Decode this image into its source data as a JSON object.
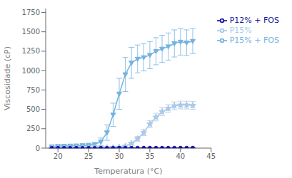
{
  "chart_data": {
    "type": "line",
    "xlabel": "Temperatura (°C)",
    "ylabel": "Viscosidade (cP)",
    "xlim": [
      18,
      45
    ],
    "ylim": [
      0,
      1800
    ],
    "xticks": [
      20,
      25,
      30,
      35,
      40,
      45
    ],
    "yticks": [
      0,
      250,
      500,
      750,
      1000,
      1250,
      1500,
      1750
    ],
    "grid": false,
    "legend": "right",
    "x": [
      19,
      20,
      21,
      22,
      23,
      24,
      25,
      26,
      27,
      28,
      29,
      30,
      31,
      32,
      33,
      34,
      35,
      36,
      37,
      38,
      39,
      40,
      41,
      42
    ],
    "series": [
      {
        "name": "P15% + FOS",
        "color": "#74b3e0",
        "marker": "triangle_down",
        "values": [
          20,
          25,
          28,
          30,
          32,
          35,
          40,
          50,
          80,
          200,
          430,
          700,
          950,
          1100,
          1150,
          1170,
          1200,
          1250,
          1280,
          1310,
          1350,
          1370,
          1360,
          1380
        ],
        "yerr": [
          5,
          5,
          5,
          5,
          5,
          5,
          8,
          15,
          50,
          100,
          150,
          200,
          220,
          200,
          180,
          175,
          175,
          175,
          175,
          175,
          175,
          170,
          165,
          160
        ]
      },
      {
        "name": "P15%",
        "color": "#aac8e8",
        "marker": "star",
        "values": [
          5,
          5,
          5,
          5,
          5,
          5,
          5,
          5,
          5,
          5,
          8,
          12,
          25,
          60,
          120,
          200,
          310,
          400,
          470,
          510,
          545,
          555,
          555,
          550
        ],
        "yerr": [
          2,
          2,
          2,
          2,
          2,
          2,
          2,
          2,
          2,
          2,
          3,
          4,
          8,
          18,
          30,
          40,
          45,
          50,
          50,
          50,
          50,
          50,
          50,
          50
        ]
      },
      {
        "name": "P12% + FOS",
        "color": "#1515a3",
        "marker": "circle",
        "values": [
          1,
          1,
          1,
          1,
          1,
          1,
          1,
          1,
          1,
          1,
          1,
          2,
          2,
          2,
          2,
          2,
          2,
          2,
          2,
          2,
          2,
          2,
          3,
          3
        ],
        "yerr": [
          0.5,
          0.5,
          0.5,
          0.5,
          0.5,
          0.5,
          0.5,
          0.5,
          0.5,
          0.5,
          0.5,
          0.5,
          0.5,
          0.5,
          0.5,
          0.5,
          0.5,
          0.5,
          0.5,
          0.5,
          0.5,
          0.5,
          0.5,
          0.5
        ]
      }
    ]
  }
}
